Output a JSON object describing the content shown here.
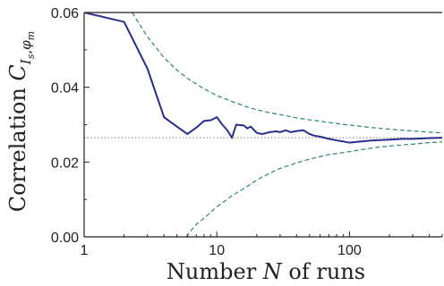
{
  "chart_data": {
    "type": "line",
    "title": "",
    "xlabel": "Number N of runs",
    "ylabel": "Correlation C_{I_s, φ_m}",
    "x_scale": "log",
    "xlim": [
      1,
      500
    ],
    "ylim": [
      0,
      0.06
    ],
    "x_ticks": [
      1,
      10,
      100
    ],
    "x_tick_labels": [
      "1",
      "10",
      "100"
    ],
    "y_ticks": [
      0,
      0.02,
      0.04,
      0.06
    ],
    "y_tick_labels": [
      "0.00",
      "0.02",
      "0.04",
      "0.06"
    ],
    "grid": false,
    "reference_value": 0.0265,
    "colors": {
      "series": "#2a2e8f",
      "bounds": "#2e8b57",
      "reference": "#666666"
    },
    "series": [
      {
        "style": "solid",
        "x": [
          1,
          2,
          3,
          4,
          5,
          6,
          7,
          8,
          9,
          10,
          11,
          12,
          13,
          14,
          16,
          17,
          18,
          20,
          22,
          25,
          28,
          30,
          33,
          36,
          40,
          45,
          50,
          55,
          60,
          70,
          80,
          90,
          100,
          120,
          150,
          200,
          250,
          300,
          400,
          500
        ],
        "y": [
          0.06,
          0.0575,
          0.045,
          0.032,
          0.0295,
          0.0275,
          0.0292,
          0.031,
          0.0312,
          0.032,
          0.03,
          0.0285,
          0.0265,
          0.03,
          0.0298,
          0.029,
          0.0295,
          0.0278,
          0.0275,
          0.028,
          0.0282,
          0.028,
          0.0285,
          0.028,
          0.0283,
          0.0285,
          0.0275,
          0.027,
          0.0268,
          0.0262,
          0.0258,
          0.0255,
          0.0252,
          0.0255,
          0.0258,
          0.026,
          0.0262,
          0.0262,
          0.0264,
          0.0265
        ]
      },
      {
        "style": "dashed",
        "x": [
          2.3,
          3,
          4,
          5,
          6,
          8,
          10,
          13,
          17,
          20,
          25,
          30,
          40,
          50,
          70,
          100,
          150,
          200,
          300,
          400,
          500
        ],
        "y": [
          0.06,
          0.0535,
          0.0479,
          0.0446,
          0.0424,
          0.0396,
          0.0378,
          0.0362,
          0.0347,
          0.034,
          0.0332,
          0.0327,
          0.0318,
          0.0313,
          0.0306,
          0.0299,
          0.0292,
          0.0288,
          0.0283,
          0.028,
          0.0278
        ]
      },
      {
        "style": "dashed",
        "x": [
          5.9,
          6,
          7,
          8,
          10,
          13,
          17,
          20,
          25,
          30,
          40,
          50,
          70,
          100,
          150,
          200,
          300,
          400,
          500
        ],
        "y": [
          0.0,
          0.0005,
          0.0033,
          0.005,
          0.008,
          0.011,
          0.0135,
          0.0152,
          0.017,
          0.0183,
          0.0198,
          0.0208,
          0.022,
          0.0228,
          0.0238,
          0.0243,
          0.0248,
          0.0252,
          0.0254
        ]
      }
    ]
  }
}
